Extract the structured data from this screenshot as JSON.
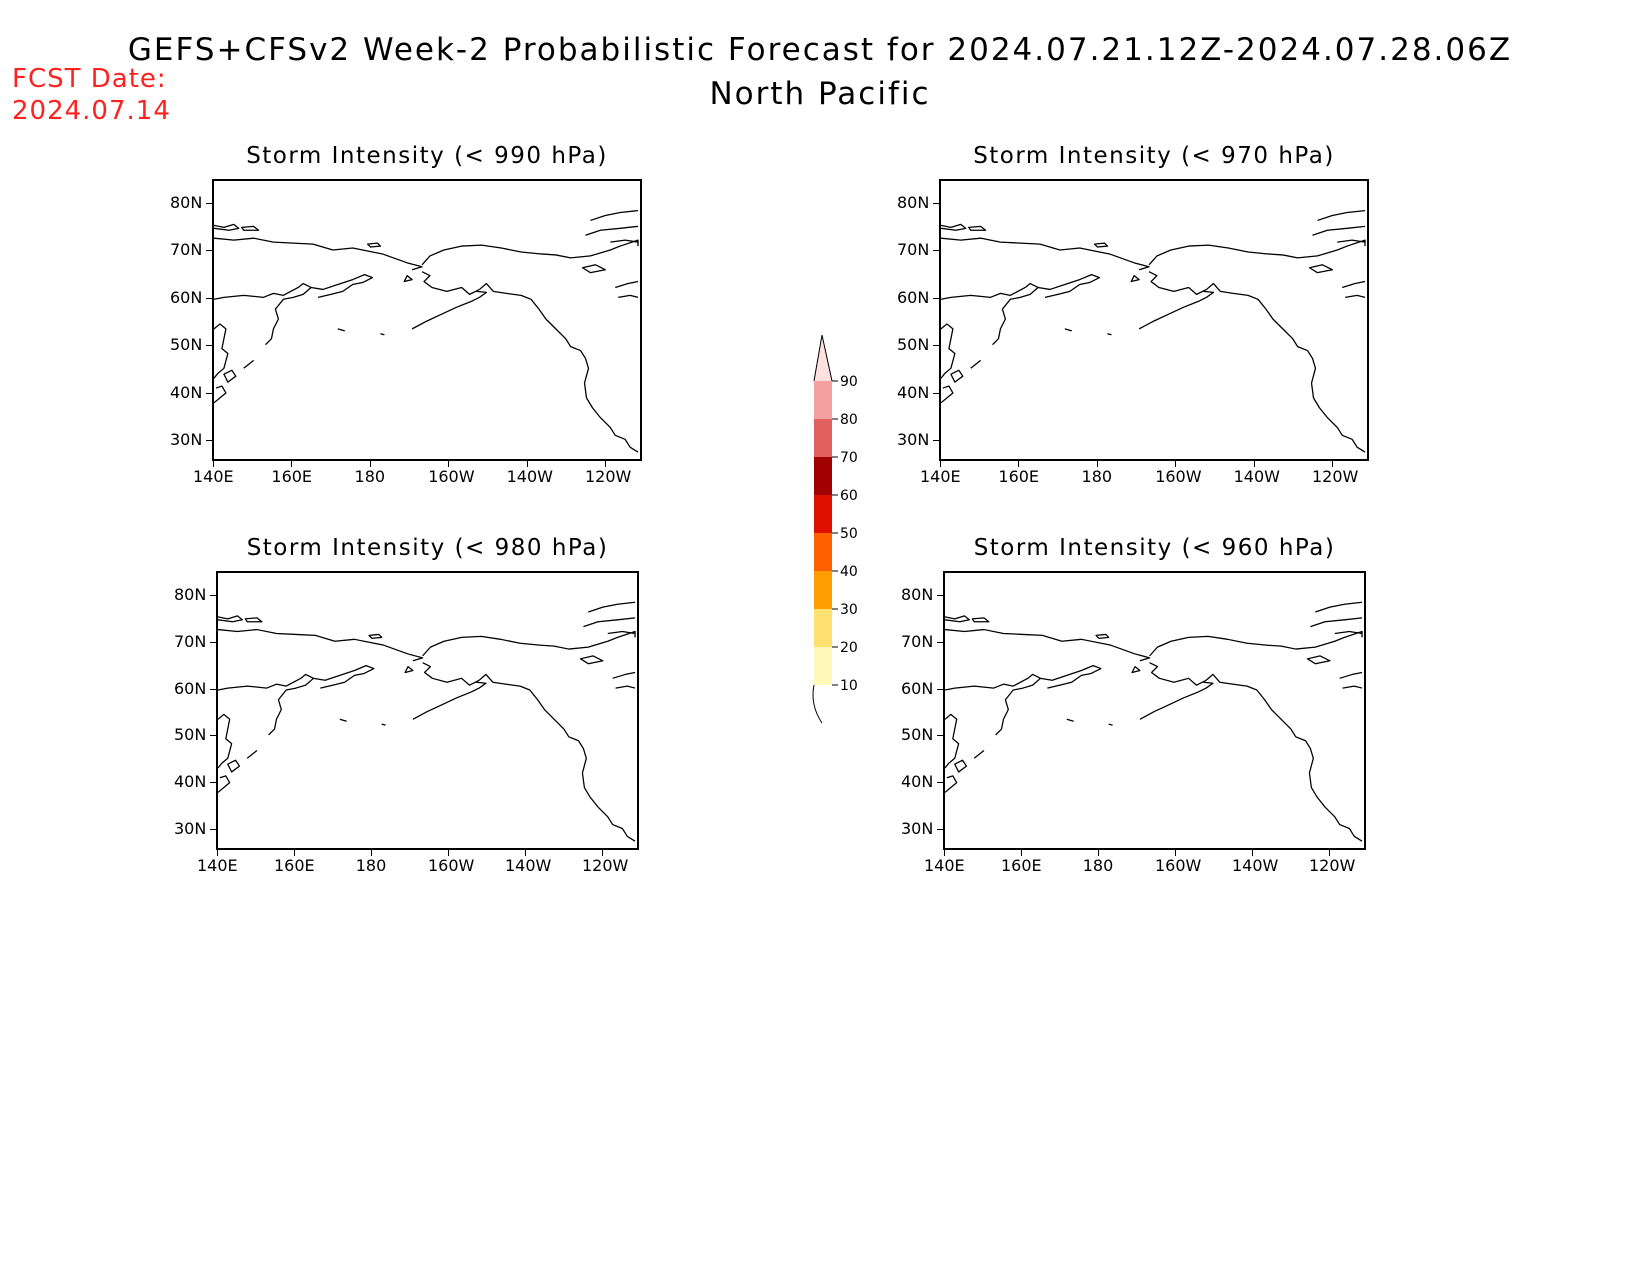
{
  "header": {
    "title": "GEFS+CFSv2 Week-2 Probabilistic Forecast for 2024.07.21.12Z-2024.07.28.06Z",
    "region": "North Pacific",
    "fcst_label": "FCST Date:",
    "fcst_date": "2024.07.14"
  },
  "axes": {
    "lat_labels": [
      "80N",
      "70N",
      "60N",
      "50N",
      "40N",
      "30N"
    ],
    "lon_labels": [
      "140E",
      "160E",
      "180",
      "160W",
      "140W",
      "120W"
    ]
  },
  "panels": [
    {
      "title": "Storm Intensity (< 990 hPa)"
    },
    {
      "title": "Storm Intensity (< 970 hPa)"
    },
    {
      "title": "Storm Intensity (< 980 hPa)"
    },
    {
      "title": "Storm Intensity (< 960 hPa)"
    }
  ],
  "colorbar": {
    "levels": [
      "10",
      "20",
      "30",
      "40",
      "50",
      "60",
      "70",
      "80",
      "90"
    ],
    "colors": [
      "#fff8b8",
      "#ffe070",
      "#ff9e00",
      "#ff6000",
      "#e01000",
      "#a00000",
      "#e06060",
      "#f4a0a0",
      "#ffe0e0"
    ]
  }
}
